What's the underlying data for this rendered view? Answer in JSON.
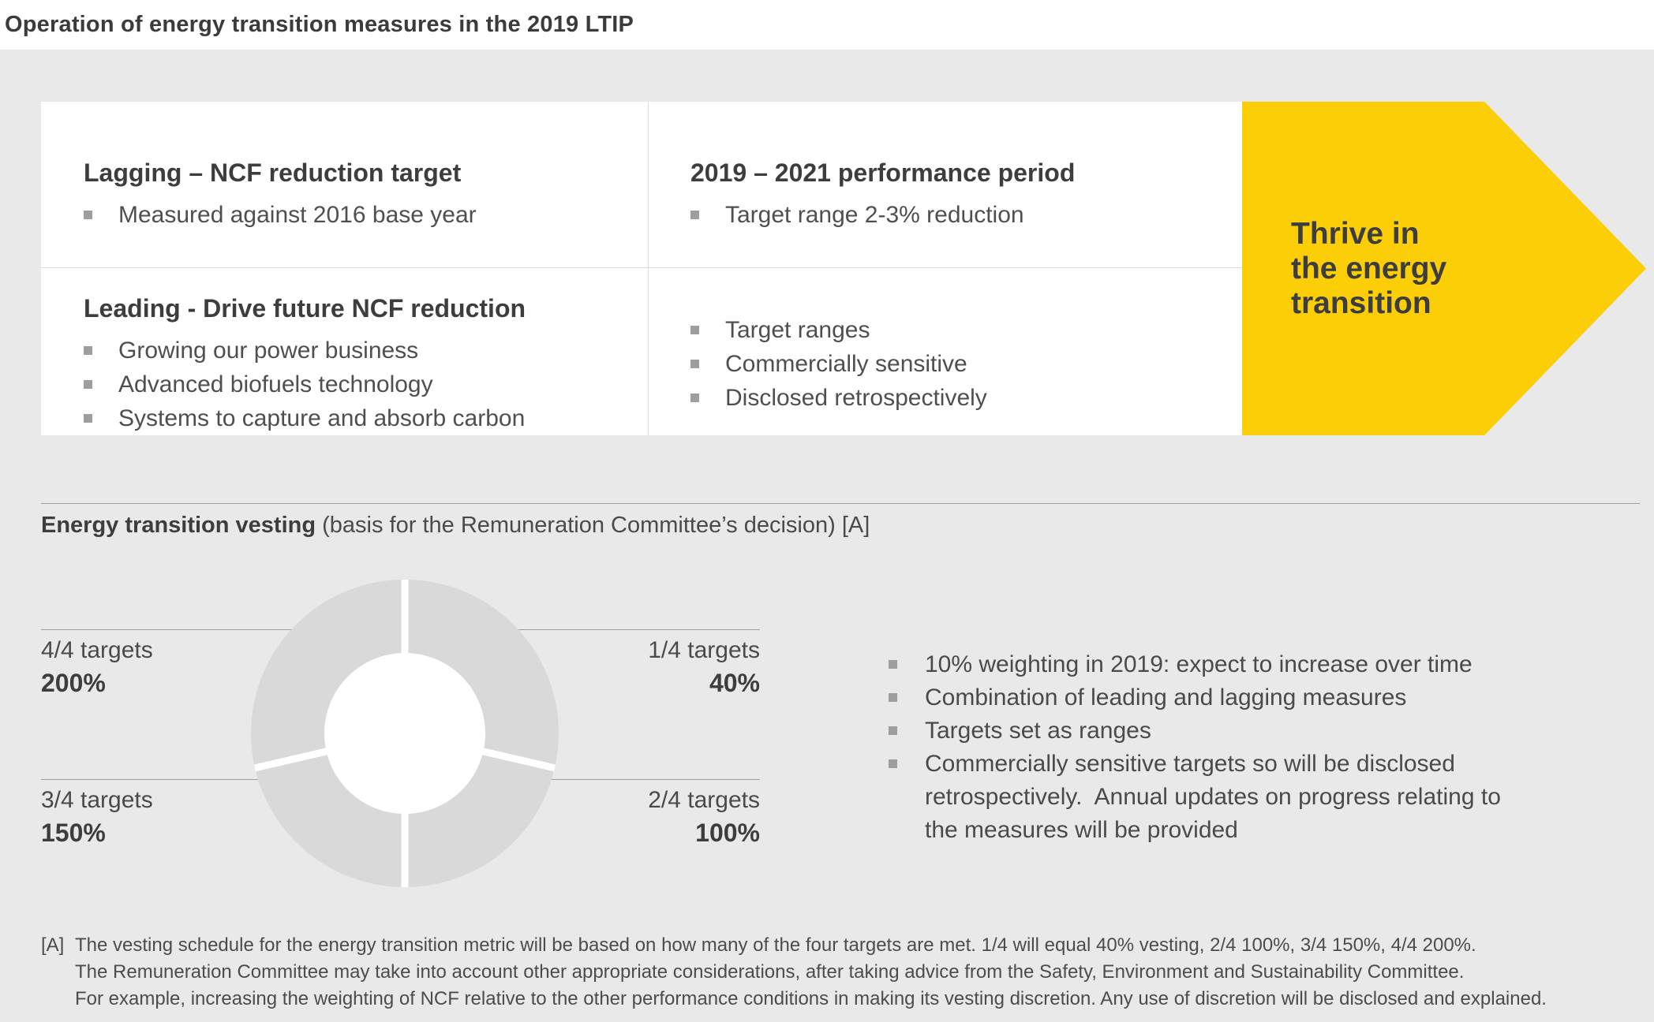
{
  "title": "Operation of energy transition measures in the 2019 LTIP",
  "panel": {
    "row1_left": {
      "heading": "Lagging – NCF reduction target",
      "bullets": [
        "Measured against 2016 base year"
      ]
    },
    "row1_right": {
      "heading": "2019 – 2021 performance period",
      "bullets": [
        "Target range 2-3% reduction"
      ]
    },
    "row2_left": {
      "heading": "Leading - Drive future NCF reduction",
      "bullets": [
        "Growing our power business",
        "Advanced biofuels technology",
        "Systems to capture and absorb carbon"
      ]
    },
    "row2_right": {
      "bullets": [
        "Target ranges",
        "Commercially sensitive",
        "Disclosed retrospectively"
      ]
    }
  },
  "arrow": {
    "color": "#fbce07",
    "lines": [
      "Thrive in",
      "the energy",
      "transition"
    ]
  },
  "vesting": {
    "title_bold": "Energy transition vesting",
    "title_rest": " (basis for the Remuneration Committee’s decision) [A]",
    "labels": {
      "tl": {
        "targets": "4/4 targets",
        "pct": "200%"
      },
      "tr": {
        "targets": "1/4 targets",
        "pct": "40%"
      },
      "bl": {
        "targets": "3/4 targets",
        "pct": "150%"
      },
      "br": {
        "targets": "2/4 targets",
        "pct": "100%"
      }
    },
    "notes": [
      "10% weighting in 2019: expect to increase over time",
      "Combination of leading and lagging measures",
      "Targets set as ranges",
      "Commercially sensitive targets so will be disclosed retrospectively.  Annual updates on progress relating to the measures will be provided"
    ]
  },
  "chart_data": {
    "type": "pie",
    "subtype": "donut",
    "title": "Energy transition vesting",
    "slices": [
      {
        "label": "1/4 targets",
        "vesting": "40%",
        "position": "top-right"
      },
      {
        "label": "2/4 targets",
        "vesting": "100%",
        "position": "bottom-right"
      },
      {
        "label": "3/4 targets",
        "vesting": "150%",
        "position": "bottom-left"
      },
      {
        "label": "4/4 targets",
        "vesting": "200%",
        "position": "top-left"
      }
    ],
    "boundaries_deg": [
      0,
      103,
      180,
      257
    ],
    "ring_color": "#d9d9d9",
    "hole_color": "#ffffff"
  },
  "footnote": {
    "marker": "[A]",
    "lines": [
      "The vesting schedule for the energy transition metric will be based on how many of the four targets are met. 1/4 will equal 40% vesting, 2/4 100%, 3/4 150%, 4/4 200%.",
      "The Remuneration Committee may take into account other appropriate considerations, after taking advice from the Safety, Environment and Sustainability Committee.",
      "For example, increasing the weighting of NCF relative to the other performance conditions in making its vesting discretion. Any use of discretion will be disclosed and explained."
    ]
  }
}
